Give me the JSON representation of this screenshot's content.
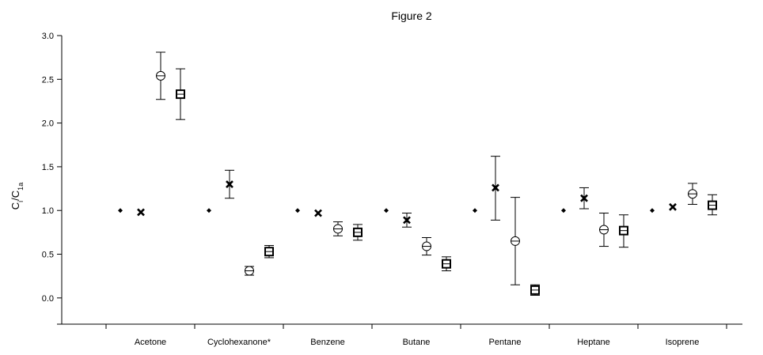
{
  "chart_data": {
    "type": "scatter",
    "title": "Figure 2",
    "ylabel": "C",
    "ylabel_sub1": "i",
    "ylabel_mid": "/C",
    "ylabel_sub2": "1a",
    "ylim": [
      -0.3,
      3.0
    ],
    "yticks": [
      "3.0",
      "2.5",
      "2.0",
      "1.5",
      "1.0",
      "0.5",
      "0.0"
    ],
    "yticks_values": [
      3.0,
      2.5,
      2.0,
      1.5,
      1.0,
      0.5,
      0.0
    ],
    "categories": [
      "Acetone",
      "Cyclohexanone*",
      "Benzene",
      "Butane",
      "Pentane",
      "Heptane",
      "Isoprene"
    ],
    "grid": false,
    "legend": "none",
    "series": [
      {
        "marker": "diamond",
        "values": [
          1.0,
          1.0,
          1.0,
          1.0,
          1.0,
          1.0,
          1.0
        ],
        "err_low": [
          null,
          null,
          null,
          null,
          null,
          null,
          null
        ],
        "err_high": [
          null,
          null,
          null,
          null,
          null,
          null,
          null
        ]
      },
      {
        "marker": "x",
        "values": [
          0.98,
          1.3,
          0.97,
          0.89,
          1.26,
          1.14,
          1.04
        ],
        "err_low": [
          null,
          1.14,
          null,
          0.81,
          0.89,
          1.02,
          null
        ],
        "err_high": [
          null,
          1.46,
          null,
          0.97,
          1.62,
          1.26,
          null
        ]
      },
      {
        "marker": "circle",
        "values": [
          2.54,
          0.31,
          0.79,
          0.59,
          0.65,
          0.78,
          1.19
        ],
        "err_low": [
          2.27,
          0.26,
          0.71,
          0.49,
          0.15,
          0.59,
          1.07
        ],
        "err_high": [
          2.81,
          0.36,
          0.87,
          0.69,
          1.15,
          0.97,
          1.31
        ]
      },
      {
        "marker": "square",
        "values": [
          2.33,
          0.53,
          0.75,
          0.39,
          0.09,
          0.77,
          1.06
        ],
        "err_low": [
          2.04,
          0.46,
          0.66,
          0.31,
          0.03,
          0.58,
          0.95
        ],
        "err_high": [
          2.62,
          0.6,
          0.84,
          0.47,
          0.15,
          0.95,
          1.18
        ]
      }
    ]
  }
}
